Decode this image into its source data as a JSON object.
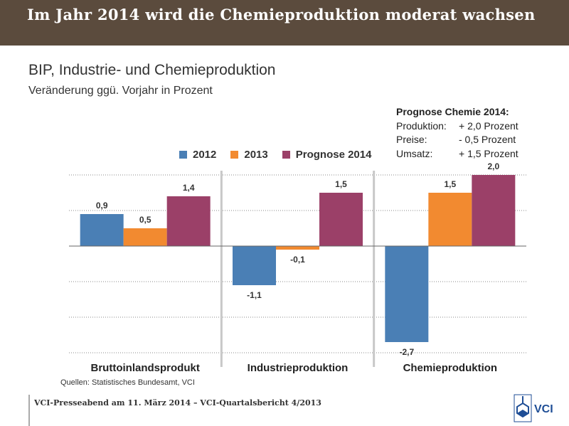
{
  "banner": {
    "title": "Im Jahr 2014 wird die Chemieproduktion moderat wachsen"
  },
  "colors": {
    "banner_bg": "#5b4b3d",
    "s2012": "#4a7fb5",
    "s2013": "#f28a30",
    "s2014": "#9b4068",
    "logo": "#1f4e96"
  },
  "chart_data": {
    "type": "bar",
    "title": "BIP, Industrie- und Chemieproduktion",
    "subtitle": "Veränderung ggü. Vorjahr in Prozent",
    "categories": [
      "Bruttoinlandsprodukt",
      "Industrieproduktion",
      "Chemieproduktion"
    ],
    "series": [
      {
        "name": "2012",
        "values": [
          0.9,
          -1.1,
          -2.7
        ],
        "labels": [
          "0,9",
          "-1,1",
          "-2,7"
        ]
      },
      {
        "name": "2013",
        "values": [
          0.5,
          -0.1,
          1.5
        ],
        "labels": [
          "0,5",
          "-0,1",
          "1,5"
        ]
      },
      {
        "name": "Prognose 2014",
        "values": [
          1.4,
          1.5,
          2.0
        ],
        "labels": [
          "1,4",
          "1,5",
          "2,0"
        ]
      }
    ],
    "ylim": [
      -3,
      2
    ],
    "grid": true,
    "xlabel": "",
    "ylabel": "",
    "legend_position": "top"
  },
  "prognose": {
    "heading": "Prognose Chemie 2014:",
    "rows": [
      {
        "label": "Produktion:",
        "value": "+ 2,0 Prozent"
      },
      {
        "label": "Preise:",
        "value": "- 0,5 Prozent"
      },
      {
        "label": "Umsatz:",
        "value": "+ 1,5 Prozent"
      }
    ]
  },
  "source": "Quellen: Statistisches Bundesamt, VCI",
  "footer": {
    "text": "VCI-Presseabend am 11. März 2014 – VCI-Quartalsbericht 4/2013"
  },
  "logo": {
    "text": "VCI"
  }
}
